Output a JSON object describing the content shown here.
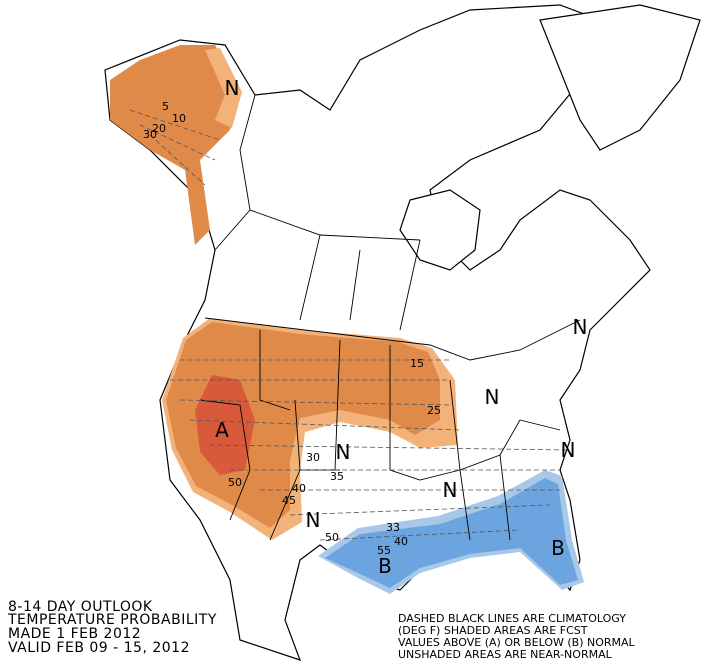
{
  "title_lines": [
    "8-14 DAY OUTLOOK",
    "TEMPERATURE PROBABILITY",
    "MADE  1 FEB 2012",
    "VALID  FEB 09 - 15, 2012"
  ],
  "note_lines": [
    "DASHED BLACK LINES ARE CLIMATOLOGY",
    "(DEG F) SHADED AREAS ARE FCST",
    "VALUES ABOVE (A) OR BELOW (B) NORMAL",
    "UNSHADED AREAS ARE NEAR-NORMAL"
  ],
  "map_labels": [
    "N",
    "N",
    "N",
    "N",
    "N",
    "N",
    "N",
    "A",
    "B",
    "B",
    "5",
    "10",
    "20",
    "30",
    "15",
    "25",
    "30",
    "35",
    "40",
    "45",
    "50",
    "50",
    "33",
    "40",
    "55"
  ]
}
